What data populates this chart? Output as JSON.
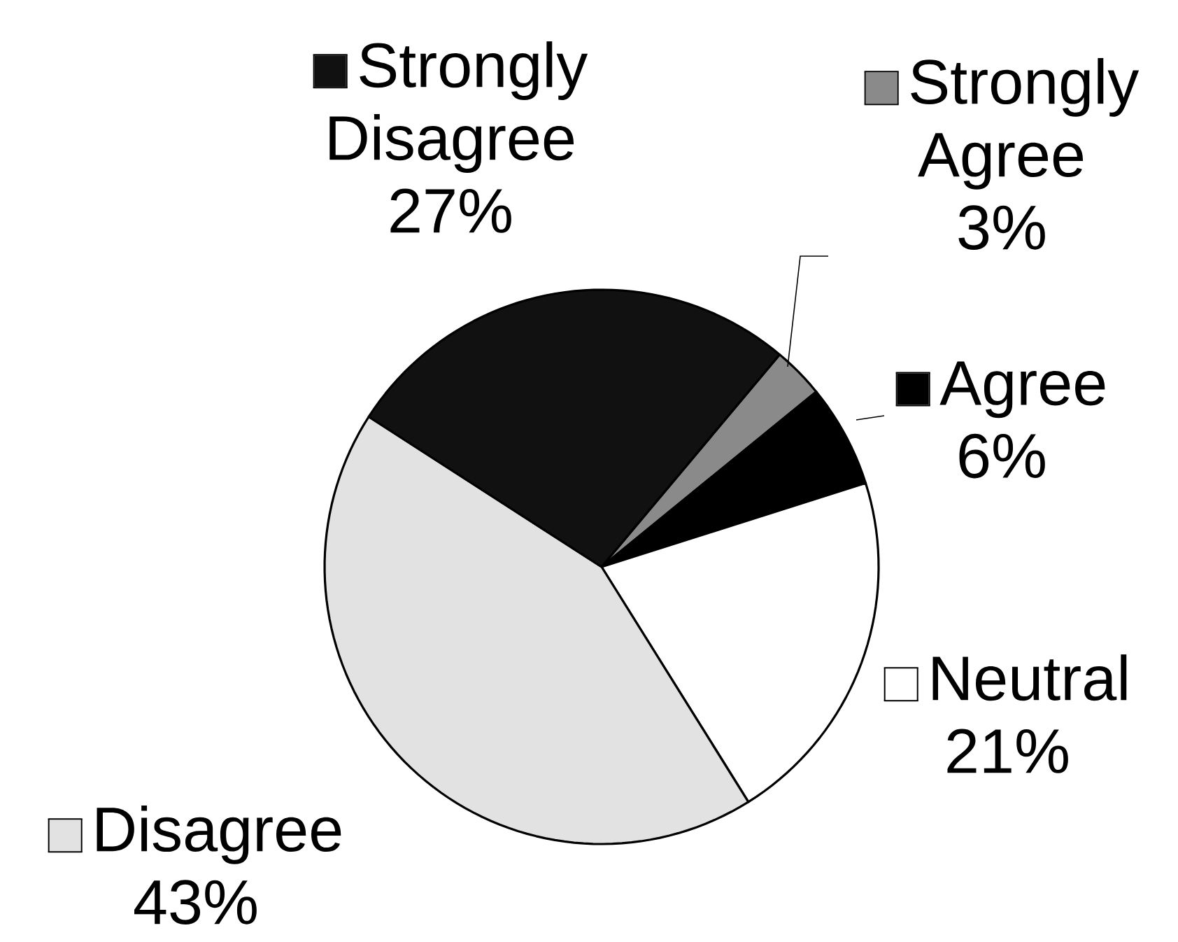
{
  "chart_data": {
    "type": "pie",
    "categories": [
      "Strongly Agree",
      "Agree",
      "Neutral",
      "Disagree",
      "Strongly Disagree"
    ],
    "values": [
      3,
      6,
      21,
      43,
      27
    ],
    "colors": [
      "#8a8a8a",
      "#000000",
      "#ffffff",
      "#e2e2e2",
      "#111111"
    ],
    "value_labels": [
      "3%",
      "6%",
      "21%",
      "43%",
      "27%"
    ],
    "legend": "right"
  }
}
